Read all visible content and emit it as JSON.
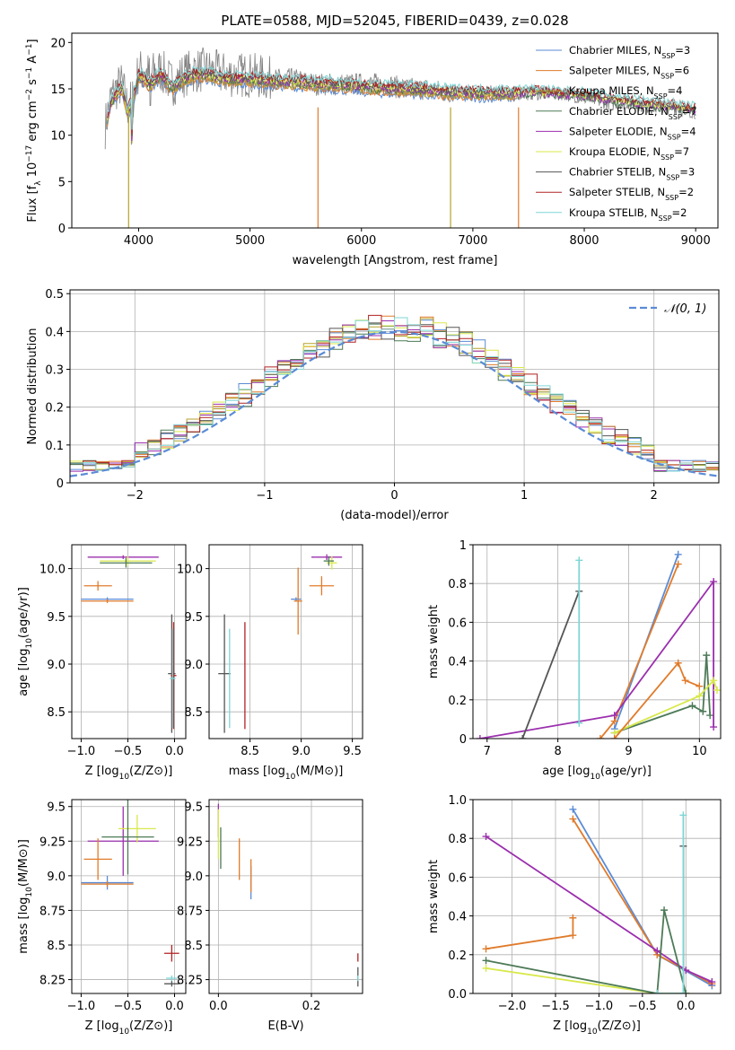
{
  "figure_title": "PLATE=0588, MJD=52045, FIBERID=0439, z=0.028",
  "model_colors": {
    "Chabrier MILES": "#5b8bd6",
    "Salpeter MILES": "#e07b2b",
    "Kroupa MILES": "#b5a22d",
    "Chabrier ELODIE": "#4d7a57",
    "Salpeter ELODIE": "#9b2fae",
    "Kroupa ELODIE": "#d8e84a",
    "Chabrier STELIB": "#555555",
    "Salpeter STELIB": "#b22222",
    "Kroupa STELIB": "#7fd6d6"
  },
  "chart_data": [
    {
      "id": "spectrum",
      "type": "line",
      "title": "PLATE=0588, MJD=52045, FIBERID=0439, z=0.028",
      "xlabel": "wavelength [Angstrom, rest frame]",
      "ylabel": "Flux [f_λ 10^-17 erg cm^-2 s^-1 A^-1]",
      "xlim": [
        3400,
        9200
      ],
      "ylim": [
        0,
        21
      ],
      "xticks": [
        4000,
        5000,
        6000,
        7000,
        8000,
        9000
      ],
      "yticks": [
        0,
        5,
        10,
        15,
        20
      ],
      "grid": false,
      "legend_position": "top-right",
      "data_wavelength": [
        3700,
        3750,
        3800,
        3850,
        3900,
        3950,
        4000,
        4100,
        4200,
        4300,
        4400,
        4500,
        4600,
        4800,
        5000,
        5200,
        5400,
        5600,
        5800,
        6000,
        6200,
        6400,
        6600,
        6800,
        7000,
        7200,
        7400,
        7600,
        7800,
        8000,
        8200,
        8400,
        8600,
        8800,
        9000
      ],
      "data_flux": [
        11,
        14,
        15,
        15.5,
        13,
        14,
        17,
        16.5,
        17,
        15.5,
        16.5,
        17,
        17,
        16.5,
        16.5,
        16,
        16,
        15.5,
        15.5,
        15.5,
        15.5,
        15,
        15,
        14.5,
        14.5,
        14.5,
        14.5,
        14.5,
        14.5,
        14,
        13.5,
        13.5,
        13,
        13,
        12.5
      ],
      "model_flux": [
        10.5,
        13.5,
        14.5,
        15,
        12.5,
        14,
        16.5,
        15.5,
        16.5,
        15,
        16,
        16.5,
        16.5,
        16,
        16,
        15.8,
        15.7,
        15.5,
        15.4,
        15.2,
        15,
        15,
        14.8,
        14.6,
        14.5,
        14.5,
        14.5,
        14.5,
        14.3,
        14.2,
        13.8,
        13.5,
        13.2,
        13,
        12.6
      ],
      "legend": [
        {
          "label": "Chabrier MILES, N",
          "sub": "SSP",
          "tail": "=3"
        },
        {
          "label": "Salpeter MILES, N",
          "sub": "SSP",
          "tail": "=6"
        },
        {
          "label": "Kroupa MILES, N",
          "sub": "SSP",
          "tail": "=4"
        },
        {
          "label": "Chabrier ELODIE, N",
          "sub": "SSP",
          "tail": "=7"
        },
        {
          "label": "Salpeter ELODIE, N",
          "sub": "SSP",
          "tail": "=4"
        },
        {
          "label": "Kroupa ELODIE, N",
          "sub": "SSP",
          "tail": "=7"
        },
        {
          "label": "Chabrier STELIB, N",
          "sub": "SSP",
          "tail": "=3"
        },
        {
          "label": "Salpeter STELIB, N",
          "sub": "SSP",
          "tail": "=2"
        },
        {
          "label": "Kroupa STELIB, N",
          "sub": "SSP",
          "tail": "=2"
        }
      ]
    },
    {
      "id": "residuals",
      "type": "histogram",
      "xlabel": "(data-model)/error",
      "ylabel": "Normed distribution",
      "xlim": [
        -2.5,
        2.5
      ],
      "ylim": [
        0,
        0.51
      ],
      "xticks": [
        -2,
        -1,
        0,
        1,
        2
      ],
      "yticks": [
        0.0,
        0.1,
        0.2,
        0.3,
        0.4,
        0.5
      ],
      "grid": true,
      "legend": [
        {
          "label": "𝒩(0, 1)",
          "style": "dashed"
        }
      ],
      "legend_position": "top-right",
      "bin_width": 0.1,
      "base_distribution": "gaussian"
    },
    {
      "id": "age_vs_Z",
      "type": "errorbar",
      "xlabel": "Z [log10(Z/Z⊙)]",
      "ylabel": "age [log10(age/yr)]",
      "xlim": [
        -1.1,
        0.12
      ],
      "ylim": [
        8.22,
        10.25
      ],
      "xticks": [
        -1.0,
        -0.5,
        0.0
      ],
      "yticks": [
        8.5,
        9.0,
        9.5,
        10.0
      ],
      "grid": true,
      "points": [
        {
          "model": "Chabrier MILES",
          "x": -0.72,
          "xerr": 0.28,
          "y": 9.68,
          "yerr": 0.02
        },
        {
          "model": "Salpeter MILES",
          "x": -0.72,
          "xerr": 0.28,
          "y": 9.66,
          "yerr": 0.02
        },
        {
          "model": "Salpeter ELODIE",
          "x": -0.55,
          "xerr": 0.38,
          "y": 10.12,
          "yerr": 0.02
        },
        {
          "model": "Kroupa ELODIE",
          "x": -0.5,
          "xerr": 0.3,
          "y": 10.08,
          "yerr": 0.05
        },
        {
          "model": "Chabrier ELODIE",
          "x": -0.52,
          "xerr": 0.28,
          "y": 10.06,
          "yerr": 0.05
        },
        {
          "model": "Salpeter MILES",
          "x": -0.82,
          "xerr": 0.15,
          "y": 9.82,
          "yerr": 0.05
        },
        {
          "model": "Chabrier STELIB",
          "x": -0.03,
          "xerr": 0.04,
          "y": 8.9,
          "yerr": 0.62
        },
        {
          "model": "Salpeter STELIB",
          "x": -0.01,
          "xerr": 0.03,
          "y": 8.88,
          "yerr": 0.56
        },
        {
          "model": "Kroupa STELIB",
          "x": -0.02,
          "xerr": 0.03,
          "y": 8.85,
          "yerr": 0.52
        }
      ]
    },
    {
      "id": "age_vs_mass",
      "type": "errorbar",
      "xlabel": "mass [log10(M/M⊙)]",
      "xlim": [
        8.1,
        9.6
      ],
      "ylim": [
        8.22,
        10.25
      ],
      "xticks": [
        8.5,
        9.0,
        9.5
      ],
      "yticks": [
        8.5,
        9.0,
        9.5,
        10.0
      ],
      "grid": true,
      "points": [
        {
          "model": "Chabrier MILES",
          "x": 8.95,
          "xerr": 0.05,
          "y": 9.68,
          "yerr": 0.02
        },
        {
          "model": "Salpeter MILES",
          "x": 8.97,
          "xerr": 0.04,
          "y": 9.66,
          "yerr": 0.35
        },
        {
          "model": "Salpeter ELODIE",
          "x": 9.25,
          "xerr": 0.15,
          "y": 10.12,
          "yerr": 0.03
        },
        {
          "model": "Kroupa ELODIE",
          "x": 9.3,
          "xerr": 0.05,
          "y": 10.06,
          "yerr": 0.07
        },
        {
          "model": "Chabrier ELODIE",
          "x": 9.27,
          "xerr": 0.05,
          "y": 10.08,
          "yerr": 0.05
        },
        {
          "model": "Salpeter MILES",
          "x": 9.2,
          "xerr": 0.12,
          "y": 9.82,
          "yerr": 0.1
        },
        {
          "model": "Chabrier STELIB",
          "x": 8.25,
          "xerr": 0.06,
          "y": 8.9,
          "yerr": 0.62
        },
        {
          "model": "Salpeter STELIB",
          "x": 8.45,
          "xerr": 0.0,
          "y": 8.88,
          "yerr": 0.56
        },
        {
          "model": "Kroupa STELIB",
          "x": 8.3,
          "xerr": 0.0,
          "y": 8.85,
          "yerr": 0.52
        }
      ]
    },
    {
      "id": "weight_vs_age",
      "type": "line",
      "xlabel": "age [log10(age/yr)]",
      "ylabel": "mass weight",
      "xlim": [
        6.8,
        10.3
      ],
      "ylim": [
        0,
        1.0
      ],
      "xticks": [
        7,
        8,
        9,
        10
      ],
      "yticks": [
        0.0,
        0.2,
        0.4,
        0.6,
        0.8,
        1.0
      ],
      "grid": true,
      "series": [
        {
          "model": "Chabrier MILES",
          "x": [
            8.8,
            9.7
          ],
          "y": [
            0.05,
            0.95
          ]
        },
        {
          "model": "Salpeter MILES",
          "x": [
            8.6,
            8.8,
            9.7
          ],
          "y": [
            0.0,
            0.09,
            0.9
          ]
        },
        {
          "model": "Chabrier ELODIE",
          "x": [
            8.8,
            9.9,
            10.05,
            10.1,
            10.15
          ],
          "y": [
            0.03,
            0.17,
            0.14,
            0.43,
            0.12
          ]
        },
        {
          "model": "Salpeter ELODIE",
          "x": [
            6.9,
            8.8,
            10.2,
            10.2
          ],
          "y": [
            0.0,
            0.12,
            0.81,
            0.06
          ]
        },
        {
          "model": "Kroupa ELODIE",
          "x": [
            8.8,
            10.0,
            10.2,
            10.25
          ],
          "y": [
            0.03,
            0.22,
            0.3,
            0.25
          ]
        },
        {
          "model": "Salpeter MILES",
          "x": [
            8.8,
            9.7,
            9.8,
            10.0
          ],
          "y": [
            0.0,
            0.39,
            0.3,
            0.27
          ]
        },
        {
          "model": "Chabrier STELIB",
          "x": [
            7.5,
            8.3
          ],
          "y": [
            0.0,
            0.76
          ]
        },
        {
          "model": "Kroupa STELIB",
          "x": [
            8.3,
            8.3
          ],
          "y": [
            0.08,
            0.92
          ]
        }
      ]
    },
    {
      "id": "mass_vs_Z",
      "type": "errorbar",
      "xlabel": "Z [log10(Z/Z⊙)]",
      "ylabel": "mass [log10(M/M⊙)]",
      "xlim": [
        -1.1,
        0.12
      ],
      "ylim": [
        8.15,
        9.55
      ],
      "xticks": [
        -1.0,
        -0.5,
        0.0
      ],
      "yticks": [
        8.25,
        8.5,
        8.75,
        9.0,
        9.25,
        9.5
      ],
      "grid": true,
      "points": [
        {
          "model": "Chabrier MILES",
          "x": -0.72,
          "xerr": 0.28,
          "y": 8.95,
          "yerr": 0.05
        },
        {
          "model": "Salpeter MILES",
          "x": -0.72,
          "xerr": 0.28,
          "y": 8.94,
          "yerr": 0.02
        },
        {
          "model": "Salpeter ELODIE",
          "x": -0.55,
          "xerr": 0.38,
          "y": 9.25,
          "yerr": 0.25
        },
        {
          "model": "Kroupa ELODIE",
          "x": -0.4,
          "xerr": 0.2,
          "y": 9.34,
          "yerr": 0.1
        },
        {
          "model": "Chabrier ELODIE",
          "x": -0.5,
          "xerr": 0.28,
          "y": 9.28,
          "yerr": 0.27
        },
        {
          "model": "Salpeter MILES",
          "x": -0.82,
          "xerr": 0.15,
          "y": 9.12,
          "yerr": 0.15
        },
        {
          "model": "Chabrier STELIB",
          "x": -0.03,
          "xerr": 0.08,
          "y": 8.22,
          "yerr": 0.02
        },
        {
          "model": "Salpeter STELIB",
          "x": -0.03,
          "xerr": 0.08,
          "y": 8.44,
          "yerr": 0.06
        },
        {
          "model": "Kroupa STELIB",
          "x": -0.03,
          "xerr": 0.06,
          "y": 8.26,
          "yerr": 0.02
        }
      ]
    },
    {
      "id": "mass_vs_ebv",
      "type": "errorbar",
      "xlabel": "E(B-V)",
      "xlim": [
        -0.02,
        0.31
      ],
      "ylim": [
        8.15,
        9.55
      ],
      "xticks": [
        0.0,
        0.2
      ],
      "yticks": [
        8.25,
        8.5,
        8.75,
        9.0,
        9.25,
        9.5
      ],
      "grid": true,
      "points": [
        {
          "model": "Chabrier MILES",
          "x": 0.07,
          "xerr": 0,
          "y": 8.95,
          "yerr": 0.12
        },
        {
          "model": "Salpeter MILES",
          "x": 0.07,
          "xerr": 0,
          "y": 9.0,
          "yerr": 0.12
        },
        {
          "model": "Salpeter ELODIE",
          "x": 0.0,
          "xerr": 0,
          "y": 9.4,
          "yerr": 0.12
        },
        {
          "model": "Kroupa ELODIE",
          "x": 0.0,
          "xerr": 0,
          "y": 9.3,
          "yerr": 0.18
        },
        {
          "model": "Chabrier ELODIE",
          "x": 0.005,
          "xerr": 0,
          "y": 9.2,
          "yerr": 0.15
        },
        {
          "model": "Salpeter MILES",
          "x": 0.045,
          "xerr": 0,
          "y": 9.12,
          "yerr": 0.15
        },
        {
          "model": "Chabrier STELIB",
          "x": 0.3,
          "xerr": 0,
          "y": 8.27,
          "yerr": 0.07
        },
        {
          "model": "Salpeter STELIB",
          "x": 0.3,
          "xerr": 0,
          "y": 8.41,
          "yerr": 0.03
        },
        {
          "model": "Kroupa STELIB",
          "x": 0.3,
          "xerr": 0,
          "y": 8.26,
          "yerr": 0.02
        }
      ]
    },
    {
      "id": "weight_vs_Z",
      "type": "line",
      "xlabel": "Z [log10(Z/Z⊙)]",
      "ylabel": "mass weight",
      "xlim": [
        -2.45,
        0.4
      ],
      "ylim": [
        0,
        1.0
      ],
      "xticks": [
        -2.0,
        -1.5,
        -1.0,
        -0.5,
        0.0
      ],
      "yticks": [
        0.0,
        0.2,
        0.4,
        0.6,
        0.8,
        1.0
      ],
      "grid": true,
      "series": [
        {
          "model": "Chabrier MILES",
          "x": [
            -1.3,
            -0.33,
            0.3
          ],
          "y": [
            0.95,
            0.2,
            0.04
          ]
        },
        {
          "model": "Salpeter MILES",
          "x": [
            -1.3,
            -0.33,
            0.3
          ],
          "y": [
            0.9,
            0.2,
            0.05
          ]
        },
        {
          "model": "Salpeter ELODIE",
          "x": [
            -2.3,
            -0.33,
            0.0,
            0.3
          ],
          "y": [
            0.81,
            0.22,
            0.12,
            0.06
          ]
        },
        {
          "model": "Kroupa ELODIE",
          "x": [
            -2.3,
            -0.33,
            0.0
          ],
          "y": [
            0.13,
            0.0,
            0.0
          ]
        },
        {
          "model": "Chabrier ELODIE",
          "x": [
            -2.3,
            -0.33,
            -0.25,
            0.0
          ],
          "y": [
            0.17,
            0.0,
            0.43,
            0.0
          ]
        },
        {
          "model": "Salpeter MILES",
          "x": [
            -2.3,
            -1.3,
            -1.3
          ],
          "y": [
            0.23,
            0.3,
            0.39
          ]
        },
        {
          "model": "Chabrier STELIB",
          "x": [
            -0.03,
            -0.03
          ],
          "y": [
            0.0,
            0.76
          ]
        },
        {
          "model": "Kroupa STELIB",
          "x": [
            -0.33,
            -0.03,
            -0.03
          ],
          "y": [
            0.0,
            0.0,
            0.92
          ]
        }
      ]
    }
  ]
}
